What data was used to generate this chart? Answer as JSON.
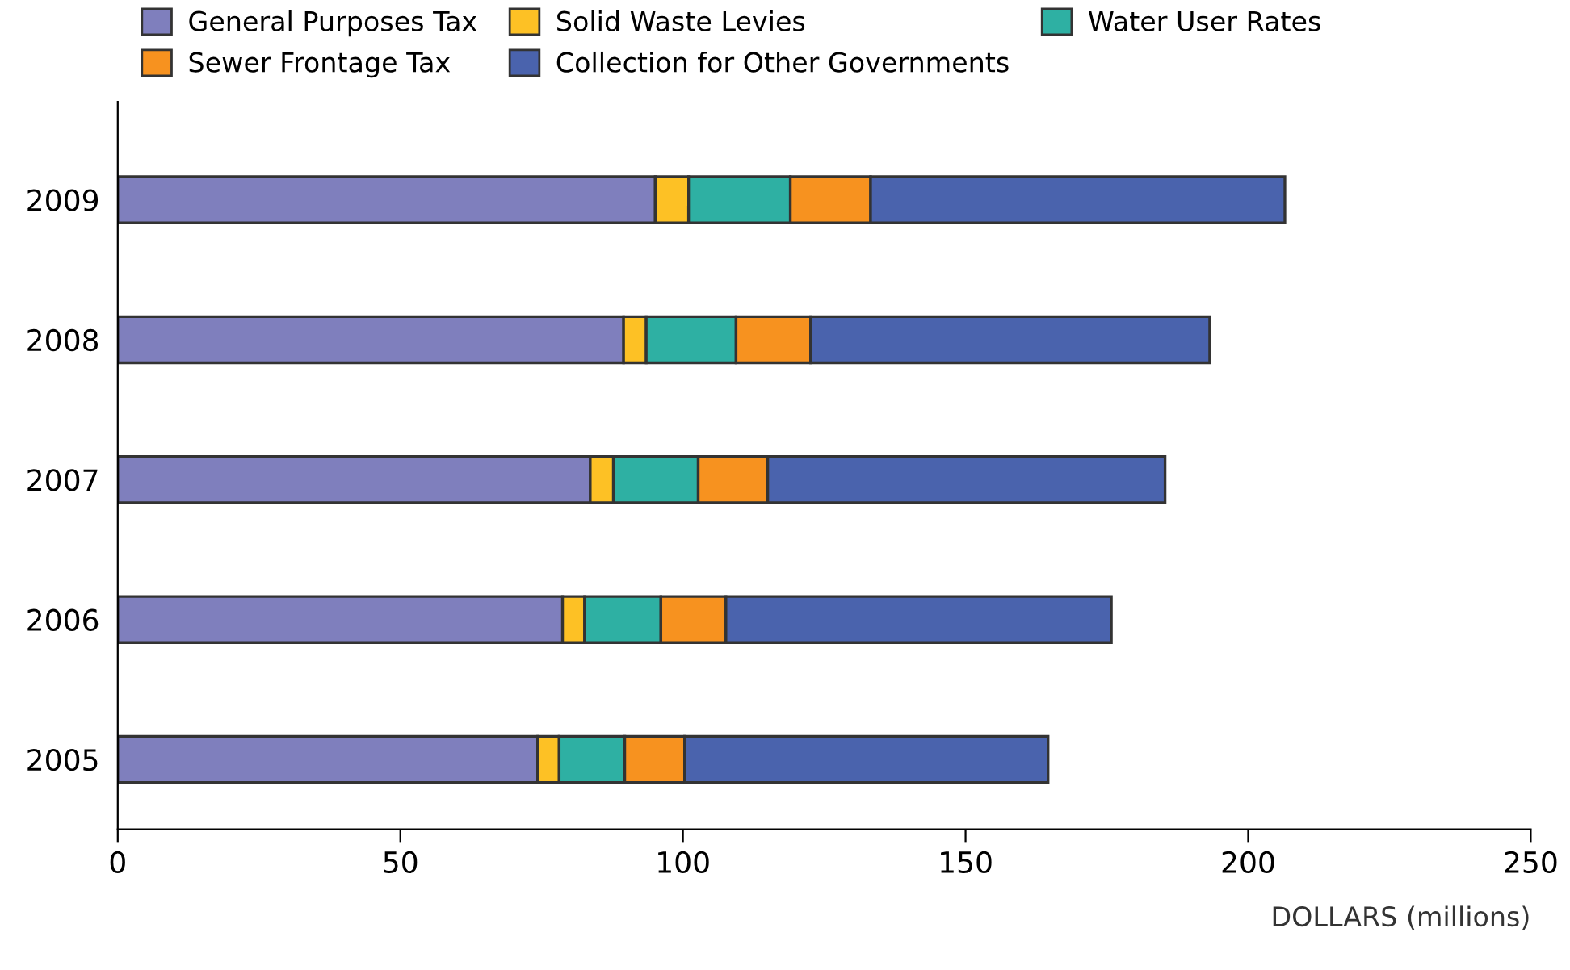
{
  "chart_data": {
    "type": "bar",
    "orientation": "horizontal",
    "stacked": true,
    "xlabel": "DOLLARS (millions)",
    "categories": [
      "2009",
      "2008",
      "2007",
      "2006",
      "2005"
    ],
    "series": [
      {
        "name": "General Purposes Tax",
        "color": "#7f7fbd",
        "values": [
          95.1,
          89.5,
          83.6,
          78.7,
          74.3
        ]
      },
      {
        "name": "Solid Waste Levies",
        "color": "#fdc125",
        "values": [
          5.9,
          4.0,
          4.1,
          3.9,
          3.8
        ]
      },
      {
        "name": "Water User Rates",
        "color": "#2eb0a3",
        "values": [
          18.0,
          15.9,
          15.0,
          13.5,
          11.6
        ]
      },
      {
        "name": "Sewer Frontage Tax",
        "color": "#f7921f",
        "values": [
          14.2,
          13.2,
          12.3,
          11.5,
          10.6
        ]
      },
      {
        "name": "Collection for Other Governments",
        "color": "#4a63ad",
        "values": [
          73.3,
          70.6,
          70.3,
          68.2,
          64.3
        ]
      }
    ],
    "xlim": [
      0,
      250
    ],
    "xticks": [
      0,
      50,
      100,
      150,
      200,
      250
    ],
    "grid": false,
    "legend": "top"
  }
}
